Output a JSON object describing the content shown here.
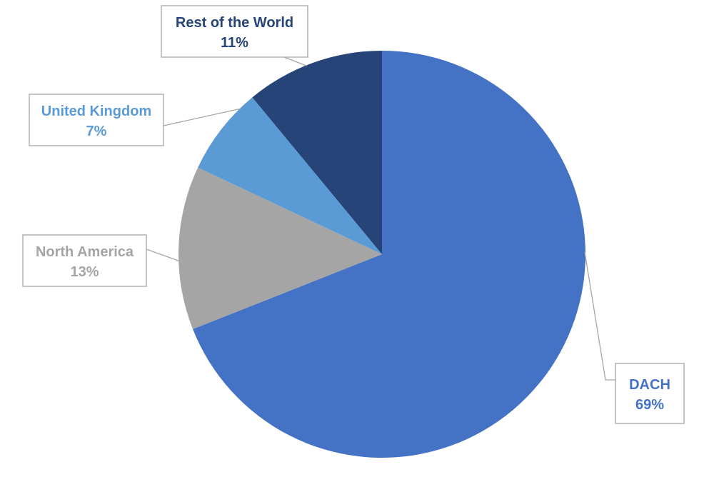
{
  "chart_data": {
    "type": "pie",
    "labels": [
      "DACH",
      "North America",
      "United Kingdom",
      "Rest of the World"
    ],
    "values": [
      69,
      13,
      7,
      11
    ],
    "value_labels": [
      "69%",
      "13%",
      "7%",
      "11%"
    ],
    "start_angle_deg": 0,
    "direction": "clockwise",
    "colors": [
      "#4472c4",
      "#a5a5a5",
      "#5b9bd5",
      "#264478"
    ],
    "label_colors": [
      "#4472c4",
      "#a5a5a5",
      "#5b9bd5",
      "#264478"
    ],
    "legend": "none",
    "data_labels": "callouts"
  }
}
